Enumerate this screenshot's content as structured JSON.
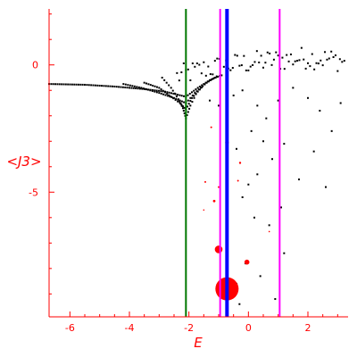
{
  "chart_data": {
    "type": "scatter",
    "title": "",
    "xlabel": "E",
    "ylabel": "<J3>",
    "xlim": [
      -6.7,
      3.35
    ],
    "ylim": [
      -9.9,
      2.2
    ],
    "xticks": [
      -6,
      -4,
      -2,
      0,
      2
    ],
    "yticks": [
      0,
      -5
    ],
    "xtick_labels": [
      "-6",
      "-4",
      "-2",
      "0",
      "2"
    ],
    "ytick_labels": [
      "0",
      "-5"
    ],
    "grid": false,
    "colors": {
      "axes": "#ff0000",
      "points": "#000000",
      "highlight": "#ff0000",
      "line_green": "#007700",
      "line_magenta": "#ff00ff",
      "line_blue": "#0000ff"
    },
    "vertical_lines": [
      {
        "x": -2.1,
        "color": "#007700",
        "weight": "thin"
      },
      {
        "x": -0.95,
        "color": "#ff00ff",
        "weight": "thin"
      },
      {
        "x": -0.72,
        "color": "#0000ff",
        "weight": "thick"
      },
      {
        "x": 1.05,
        "color": "#ff00ff",
        "weight": "thin"
      }
    ],
    "bands": [
      {
        "x": [
          -6.7,
          -5.5,
          -4.5,
          -3.5,
          -2.8,
          -2.1,
          -1.7,
          -1.3,
          -0.9
        ],
        "y": [
          -0.75,
          -0.78,
          -0.85,
          -0.95,
          -1.05,
          -1.25,
          -0.9,
          -0.6,
          -0.4
        ]
      },
      {
        "x": [
          -4.2,
          -3.6,
          -3.0,
          -2.5,
          -2.1,
          -1.8,
          -1.4,
          -1.0
        ],
        "y": [
          -0.75,
          -0.9,
          -1.1,
          -1.3,
          -1.5,
          -1.1,
          -0.7,
          -0.4
        ]
      },
      {
        "x": [
          -3.5,
          -3.0,
          -2.6,
          -2.3,
          -2.1,
          -1.9,
          -1.5
        ],
        "y": [
          -0.7,
          -0.9,
          -1.25,
          -1.5,
          -1.75,
          -1.3,
          -0.8
        ]
      },
      {
        "x": [
          -2.9,
          -2.6,
          -2.35,
          -2.2,
          -2.1,
          -1.95,
          -1.7
        ],
        "y": [
          -0.5,
          -0.9,
          -1.35,
          -1.7,
          -2.1,
          -1.6,
          -1.0
        ]
      },
      {
        "x": [
          -2.4,
          -2.1,
          -1.8,
          -1.5,
          -1.2,
          -0.9,
          -0.6,
          -0.3,
          0.0,
          0.5,
          1.0,
          1.5,
          2.0,
          2.5,
          3.0,
          3.3
        ],
        "y": [
          -0.55,
          -0.45,
          -0.35,
          -0.25,
          -0.2,
          -0.15,
          -0.1,
          -0.05,
          0.0,
          0.05,
          0.1,
          0.15,
          0.2,
          0.15,
          0.1,
          0.05
        ]
      }
    ],
    "scattered_points": [
      {
        "x": -1.3,
        "y": -1.4
      },
      {
        "x": -1.0,
        "y": -1.6
      },
      {
        "x": -0.5,
        "y": -1.2
      },
      {
        "x": -0.2,
        "y": -1.0
      },
      {
        "x": 0.3,
        "y": -1.6
      },
      {
        "x": 0.6,
        "y": -2.1
      },
      {
        "x": 1.0,
        "y": -1.4
      },
      {
        "x": 1.5,
        "y": -0.9
      },
      {
        "x": 2.0,
        "y": -1.3
      },
      {
        "x": 2.4,
        "y": -1.8
      },
      {
        "x": 3.1,
        "y": -1.5
      },
      {
        "x": 0.1,
        "y": -2.6
      },
      {
        "x": 0.5,
        "y": -3.0
      },
      {
        "x": 1.2,
        "y": -3.1
      },
      {
        "x": 0.8,
        "y": -3.7
      },
      {
        "x": -0.4,
        "y": -3.3
      },
      {
        "x": 1.7,
        "y": -4.5
      },
      {
        "x": 2.6,
        "y": -4.8
      },
      {
        "x": 0.3,
        "y": -4.3
      },
      {
        "x": -0.2,
        "y": -5.2
      },
      {
        "x": 1.1,
        "y": -5.6
      },
      {
        "x": 0.2,
        "y": -6.0
      },
      {
        "x": 0.7,
        "y": -6.3
      },
      {
        "x": -0.1,
        "y": -7.8
      },
      {
        "x": 0.4,
        "y": -8.3
      },
      {
        "x": 1.2,
        "y": -7.4
      },
      {
        "x": -0.4,
        "y": -8.6
      },
      {
        "x": 0.9,
        "y": -9.2
      },
      {
        "x": -0.3,
        "y": -9.4
      },
      {
        "x": 2.2,
        "y": -3.4
      },
      {
        "x": 2.8,
        "y": -2.6
      },
      {
        "x": 0.0,
        "y": -4.7
      }
    ],
    "highlight_points": [
      {
        "x": -0.72,
        "y": -3.05,
        "size": 2.0
      },
      {
        "x": -1.25,
        "y": -2.45,
        "size": 1.0
      },
      {
        "x": -0.28,
        "y": -3.85,
        "size": 1.2
      },
      {
        "x": -0.35,
        "y": -4.55,
        "size": 1.0
      },
      {
        "x": -1.45,
        "y": -4.6,
        "size": 1.0
      },
      {
        "x": -1.0,
        "y": -4.8,
        "size": 1.0
      },
      {
        "x": -1.15,
        "y": -5.35,
        "size": 1.4
      },
      {
        "x": -1.5,
        "y": -5.7,
        "size": 0.8
      },
      {
        "x": -0.7,
        "y": -5.85,
        "size": 0.8
      },
      {
        "x": 0.7,
        "y": -6.55,
        "size": 0.8
      },
      {
        "x": -1.0,
        "y": -7.25,
        "size": 4.3
      },
      {
        "x": -0.05,
        "y": -7.75,
        "size": 2.8
      },
      {
        "x": -0.72,
        "y": -8.8,
        "size": 13.0
      }
    ]
  }
}
